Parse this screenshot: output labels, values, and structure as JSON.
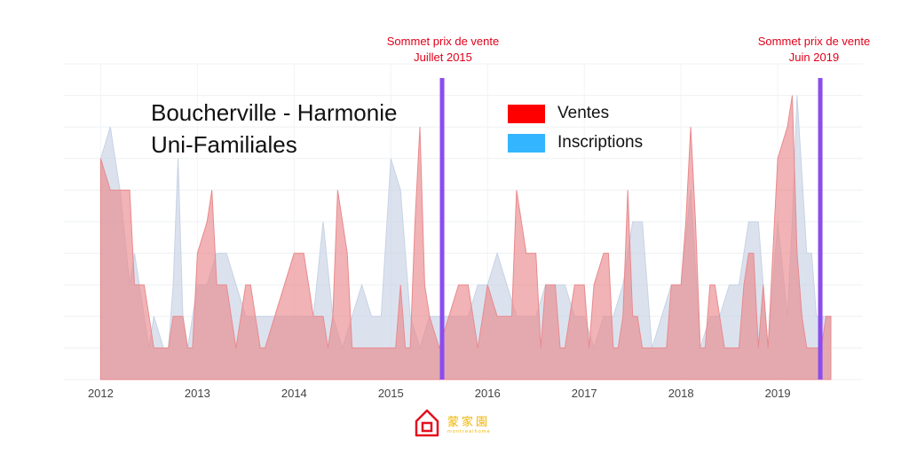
{
  "chart_data": {
    "type": "area",
    "title_lines": [
      "Boucherville - Harmonie",
      "Uni-Familiales"
    ],
    "xlabel": "",
    "ylabel": "",
    "x_ticks": [
      2012,
      2013,
      2014,
      2015,
      2016,
      2017,
      2018,
      2019
    ],
    "xlim": [
      2011.62,
      2019.88
    ],
    "ylim": [
      0,
      10
    ],
    "grid": true,
    "legend": {
      "placement": "top-center",
      "items": [
        {
          "name": "Ventes",
          "color": "#ff0000"
        },
        {
          "name": "Inscriptions",
          "color": "#33b5ff"
        }
      ]
    },
    "series": [
      {
        "name": "Inscriptions",
        "fill": "#c7d3e5",
        "points": [
          [
            2012.0,
            0
          ],
          [
            2012.0,
            7
          ],
          [
            2012.1,
            8
          ],
          [
            2012.2,
            6
          ],
          [
            2012.3,
            3
          ],
          [
            2012.35,
            4
          ],
          [
            2012.45,
            2
          ],
          [
            2012.5,
            1
          ],
          [
            2012.55,
            2
          ],
          [
            2012.65,
            1
          ],
          [
            2012.7,
            1
          ],
          [
            2012.75,
            3
          ],
          [
            2012.8,
            7
          ],
          [
            2012.85,
            2
          ],
          [
            2012.9,
            1
          ],
          [
            2013.0,
            3
          ],
          [
            2013.1,
            3
          ],
          [
            2013.2,
            4
          ],
          [
            2013.3,
            4
          ],
          [
            2013.4,
            3
          ],
          [
            2013.5,
            2
          ],
          [
            2013.6,
            2
          ],
          [
            2013.7,
            2
          ],
          [
            2013.8,
            2
          ],
          [
            2013.9,
            2
          ],
          [
            2014.0,
            2
          ],
          [
            2014.1,
            2
          ],
          [
            2014.2,
            2
          ],
          [
            2014.3,
            5
          ],
          [
            2014.4,
            2
          ],
          [
            2014.5,
            1
          ],
          [
            2014.6,
            2
          ],
          [
            2014.7,
            3
          ],
          [
            2014.8,
            2
          ],
          [
            2014.9,
            2
          ],
          [
            2015.0,
            7
          ],
          [
            2015.1,
            6
          ],
          [
            2015.2,
            2
          ],
          [
            2015.3,
            1
          ],
          [
            2015.4,
            2
          ],
          [
            2015.5,
            2
          ],
          [
            2015.6,
            2
          ],
          [
            2015.7,
            2
          ],
          [
            2015.8,
            2
          ],
          [
            2015.9,
            3
          ],
          [
            2016.0,
            3
          ],
          [
            2016.1,
            4
          ],
          [
            2016.2,
            3
          ],
          [
            2016.3,
            2
          ],
          [
            2016.4,
            2
          ],
          [
            2016.5,
            2
          ],
          [
            2016.6,
            3
          ],
          [
            2016.7,
            3
          ],
          [
            2016.8,
            3
          ],
          [
            2016.9,
            2
          ],
          [
            2017.0,
            2
          ],
          [
            2017.1,
            1
          ],
          [
            2017.2,
            2
          ],
          [
            2017.3,
            2
          ],
          [
            2017.4,
            3
          ],
          [
            2017.5,
            5
          ],
          [
            2017.6,
            5
          ],
          [
            2017.7,
            1
          ],
          [
            2017.8,
            2
          ],
          [
            2017.9,
            3
          ],
          [
            2018.0,
            3
          ],
          [
            2018.1,
            6
          ],
          [
            2018.2,
            1
          ],
          [
            2018.3,
            2
          ],
          [
            2018.4,
            2
          ],
          [
            2018.5,
            3
          ],
          [
            2018.6,
            3
          ],
          [
            2018.7,
            5
          ],
          [
            2018.8,
            5
          ],
          [
            2018.9,
            1
          ],
          [
            2019.0,
            5
          ],
          [
            2019.1,
            2
          ],
          [
            2019.15,
            5
          ],
          [
            2019.2,
            9
          ],
          [
            2019.3,
            4
          ],
          [
            2019.35,
            4
          ],
          [
            2019.4,
            2
          ],
          [
            2019.45,
            2
          ],
          [
            2019.5,
            2
          ],
          [
            2019.55,
            2
          ],
          [
            2019.55,
            0
          ]
        ]
      },
      {
        "name": "Ventes",
        "fill": "#e98a8d",
        "points": [
          [
            2012.0,
            0
          ],
          [
            2012.0,
            7
          ],
          [
            2012.1,
            6
          ],
          [
            2012.2,
            6
          ],
          [
            2012.3,
            6
          ],
          [
            2012.35,
            3
          ],
          [
            2012.45,
            3
          ],
          [
            2012.5,
            2
          ],
          [
            2012.55,
            1
          ],
          [
            2012.6,
            1
          ],
          [
            2012.7,
            1
          ],
          [
            2012.75,
            2
          ],
          [
            2012.8,
            2
          ],
          [
            2012.85,
            2
          ],
          [
            2012.9,
            1
          ],
          [
            2012.95,
            1
          ],
          [
            2013.0,
            4
          ],
          [
            2013.1,
            5
          ],
          [
            2013.15,
            6
          ],
          [
            2013.2,
            3
          ],
          [
            2013.25,
            3
          ],
          [
            2013.3,
            3
          ],
          [
            2013.35,
            2
          ],
          [
            2013.4,
            1
          ],
          [
            2013.5,
            3
          ],
          [
            2013.55,
            3
          ],
          [
            2013.6,
            2
          ],
          [
            2013.65,
            1
          ],
          [
            2013.7,
            1
          ],
          [
            2013.8,
            2
          ],
          [
            2013.9,
            3
          ],
          [
            2014.0,
            4
          ],
          [
            2014.05,
            4
          ],
          [
            2014.1,
            4
          ],
          [
            2014.2,
            2
          ],
          [
            2014.25,
            2
          ],
          [
            2014.3,
            2
          ],
          [
            2014.35,
            1
          ],
          [
            2014.4,
            2
          ],
          [
            2014.45,
            6
          ],
          [
            2014.5,
            5
          ],
          [
            2014.55,
            4
          ],
          [
            2014.6,
            1
          ],
          [
            2014.65,
            1
          ],
          [
            2014.7,
            1
          ],
          [
            2014.8,
            1
          ],
          [
            2014.9,
            1
          ],
          [
            2015.0,
            1
          ],
          [
            2015.05,
            1
          ],
          [
            2015.1,
            3
          ],
          [
            2015.15,
            1
          ],
          [
            2015.2,
            1
          ],
          [
            2015.25,
            5
          ],
          [
            2015.3,
            8
          ],
          [
            2015.35,
            3
          ],
          [
            2015.4,
            2
          ],
          [
            2015.5,
            1
          ],
          [
            2015.6,
            2
          ],
          [
            2015.7,
            3
          ],
          [
            2015.8,
            3
          ],
          [
            2015.9,
            1
          ],
          [
            2016.0,
            3
          ],
          [
            2016.1,
            2
          ],
          [
            2016.2,
            2
          ],
          [
            2016.25,
            2
          ],
          [
            2016.3,
            6
          ],
          [
            2016.35,
            5
          ],
          [
            2016.4,
            4
          ],
          [
            2016.45,
            4
          ],
          [
            2016.5,
            4
          ],
          [
            2016.55,
            1
          ],
          [
            2016.6,
            3
          ],
          [
            2016.65,
            3
          ],
          [
            2016.7,
            3
          ],
          [
            2016.75,
            1
          ],
          [
            2016.8,
            1
          ],
          [
            2016.9,
            3
          ],
          [
            2017.0,
            3
          ],
          [
            2017.05,
            1
          ],
          [
            2017.1,
            3
          ],
          [
            2017.2,
            4
          ],
          [
            2017.25,
            4
          ],
          [
            2017.3,
            1
          ],
          [
            2017.35,
            1
          ],
          [
            2017.4,
            2
          ],
          [
            2017.45,
            6
          ],
          [
            2017.5,
            2
          ],
          [
            2017.55,
            2
          ],
          [
            2017.6,
            1
          ],
          [
            2017.65,
            1
          ],
          [
            2017.7,
            1
          ],
          [
            2017.75,
            1
          ],
          [
            2017.8,
            1
          ],
          [
            2017.85,
            1
          ],
          [
            2017.9,
            3
          ],
          [
            2018.0,
            3
          ],
          [
            2018.05,
            5
          ],
          [
            2018.1,
            8
          ],
          [
            2018.15,
            5
          ],
          [
            2018.2,
            1
          ],
          [
            2018.25,
            1
          ],
          [
            2018.3,
            3
          ],
          [
            2018.35,
            3
          ],
          [
            2018.4,
            2
          ],
          [
            2018.45,
            1
          ],
          [
            2018.5,
            1
          ],
          [
            2018.55,
            1
          ],
          [
            2018.6,
            1
          ],
          [
            2018.65,
            3
          ],
          [
            2018.7,
            4
          ],
          [
            2018.75,
            4
          ],
          [
            2018.8,
            1
          ],
          [
            2018.85,
            3
          ],
          [
            2018.9,
            1
          ],
          [
            2019.0,
            7
          ],
          [
            2019.1,
            8
          ],
          [
            2019.15,
            9
          ],
          [
            2019.2,
            4
          ],
          [
            2019.25,
            2
          ],
          [
            2019.3,
            1
          ],
          [
            2019.35,
            1
          ],
          [
            2019.4,
            1
          ],
          [
            2019.45,
            1
          ],
          [
            2019.5,
            2
          ],
          [
            2019.55,
            2
          ],
          [
            2019.55,
            0
          ]
        ]
      }
    ],
    "vlines": [
      {
        "x": 2015.53,
        "color": "#8b4cf0",
        "label_lines": [
          "Sommet prix de vente",
          "Juillet 2015"
        ]
      },
      {
        "x": 2019.44,
        "color": "#8b4cf0",
        "label_lines": [
          "Sommet prix de vente",
          "Juin 2019"
        ]
      }
    ]
  },
  "logo": {
    "chinese": "蒙家園",
    "sub": "montrealhome"
  }
}
